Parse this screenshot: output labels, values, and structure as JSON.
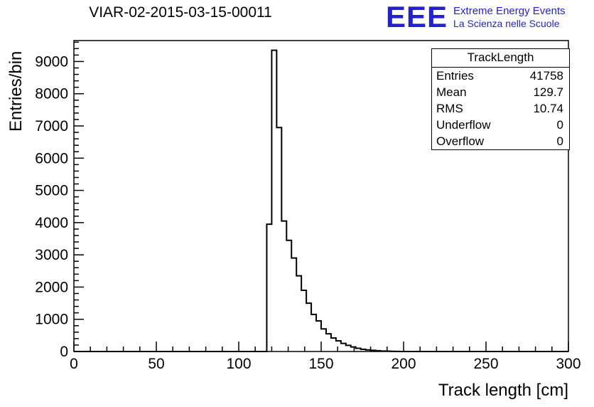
{
  "title": "VIAR-02-2015-03-15-00011",
  "logo": {
    "mark": "EEE",
    "line1": "Extreme Energy Events",
    "line2": "La Scienza nelle Scuole",
    "color": "#2222cc"
  },
  "stats": {
    "header": "TrackLength",
    "rows": [
      {
        "label": "Entries",
        "value": "41758"
      },
      {
        "label": "Mean",
        "value": "129.7"
      },
      {
        "label": "RMS",
        "value": "10.74"
      },
      {
        "label": "Underflow",
        "value": "0"
      },
      {
        "label": "Overflow",
        "value": "0"
      }
    ]
  },
  "chart_data": {
    "type": "histogram",
    "title": "VIAR-02-2015-03-15-00011",
    "xlabel": "Track length [cm]",
    "ylabel": "Entries/bin",
    "xlim": [
      0,
      300
    ],
    "ylim": [
      0,
      9650
    ],
    "x_major": 50,
    "x_minor": 10,
    "y_major": 1000,
    "y_minor": 200,
    "x_tick_labels": [
      "0",
      "50",
      "100",
      "150",
      "200",
      "250",
      "300"
    ],
    "y_tick_labels": [
      "0",
      "1000",
      "2000",
      "3000",
      "4000",
      "5000",
      "6000",
      "7000",
      "8000",
      "9000"
    ],
    "bin_start": 117,
    "bin_width": 3,
    "counts": [
      3950,
      9350,
      6950,
      4050,
      3450,
      2900,
      2350,
      1900,
      1500,
      1150,
      950,
      700,
      550,
      420,
      330,
      250,
      190,
      140,
      100,
      70,
      50,
      35,
      25,
      15,
      10,
      5,
      3
    ],
    "line_color": "#000000",
    "grid": false,
    "legend": "stats-box top-right"
  }
}
